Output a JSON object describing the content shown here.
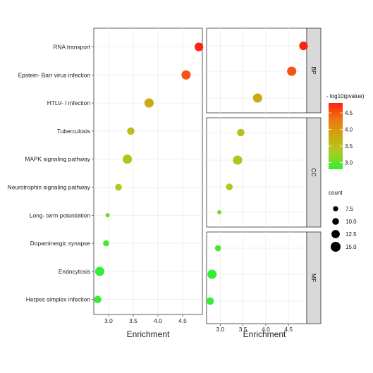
{
  "chart_data": [
    {
      "type": "scatter",
      "panel": "combined",
      "xlabel": "Enrichment",
      "xlim": [
        2.7,
        4.9
      ],
      "xticks": [
        "3.0",
        "3.5",
        "4.0",
        "4.5"
      ],
      "categories": [
        "RNA transport",
        "Epstein- Barr virus infection",
        "HTLV- I infection",
        "Tuberculosis",
        "MAPK signaling pathway",
        "Neurotrophin signaling pathway",
        "Long- term potentiation",
        "Dopaminergic synapse",
        "Endocytosis",
        "Herpes simplex infection"
      ],
      "points": [
        {
          "category": "RNA transport",
          "x": 4.83,
          "count": 13,
          "neglog10p": 4.8
        },
        {
          "category": "Epstein- Barr virus infection",
          "x": 4.57,
          "count": 14,
          "neglog10p": 4.5
        },
        {
          "category": "HTLV- I infection",
          "x": 3.82,
          "count": 14,
          "neglog10p": 3.8
        },
        {
          "category": "Tuberculosis",
          "x": 3.45,
          "count": 11,
          "neglog10p": 3.5
        },
        {
          "category": "MAPK signaling pathway",
          "x": 3.38,
          "count": 14,
          "neglog10p": 3.4
        },
        {
          "category": "Neurotrophin signaling pathway",
          "x": 3.2,
          "count": 10,
          "neglog10p": 3.3
        },
        {
          "category": "Long- term potentiation",
          "x": 2.98,
          "count": 6,
          "neglog10p": 3.0
        },
        {
          "category": "Dopaminergic synapse",
          "x": 2.95,
          "count": 9,
          "neglog10p": 2.9
        },
        {
          "category": "Endocytosis",
          "x": 2.82,
          "count": 14,
          "neglog10p": 2.8
        },
        {
          "category": "Herpes simplex infection",
          "x": 2.78,
          "count": 11,
          "neglog10p": 2.8
        }
      ]
    },
    {
      "type": "scatter",
      "panel": "faceted",
      "xlabel": "Enrichment",
      "xlim": [
        2.7,
        4.9
      ],
      "xticks": [
        "3.0",
        "3.5",
        "4.0",
        "4.5"
      ],
      "facets": [
        {
          "label": "BP",
          "points": [
            {
              "category": "RNA transport",
              "x": 4.83,
              "count": 13,
              "neglog10p": 4.8
            },
            {
              "category": "Epstein- Barr virus infection",
              "x": 4.57,
              "count": 14,
              "neglog10p": 4.5
            },
            {
              "category": "HTLV- I infection",
              "x": 3.82,
              "count": 14,
              "neglog10p": 3.8
            }
          ]
        },
        {
          "label": "CC",
          "points": [
            {
              "category": "Tuberculosis",
              "x": 3.45,
              "count": 11,
              "neglog10p": 3.5
            },
            {
              "category": "MAPK signaling pathway",
              "x": 3.38,
              "count": 14,
              "neglog10p": 3.4
            },
            {
              "category": "Neurotrophin signaling pathway",
              "x": 3.2,
              "count": 10,
              "neglog10p": 3.3
            },
            {
              "category": "Long- term potentiation",
              "x": 2.98,
              "count": 6,
              "neglog10p": 3.0
            }
          ]
        },
        {
          "label": "MF",
          "points": [
            {
              "category": "Dopaminergic synapse",
              "x": 2.95,
              "count": 9,
              "neglog10p": 2.9
            },
            {
              "category": "Endocytosis",
              "x": 2.82,
              "count": 14,
              "neglog10p": 2.8
            },
            {
              "category": "Herpes simplex infection",
              "x": 2.78,
              "count": 11,
              "neglog10p": 2.8
            }
          ]
        }
      ]
    }
  ],
  "legend": {
    "color_title": "- log10(pvalue)",
    "color_breaks": [
      "4.5",
      "4.0",
      "3.5",
      "3.0"
    ],
    "color_values": [
      4.5,
      4.0,
      3.5,
      3.0
    ],
    "color_range": [
      2.8,
      4.8
    ],
    "colors": [
      "#33ee33",
      "#aacc22",
      "#ccaa11",
      "#ee7711",
      "#ff2211"
    ],
    "size_title": "count",
    "size_labels": [
      "7.5",
      "10.0",
      "12.5",
      "15.0"
    ],
    "size_values": [
      7.5,
      10.0,
      12.5,
      15.0
    ],
    "size_range": [
      6,
      15
    ]
  }
}
